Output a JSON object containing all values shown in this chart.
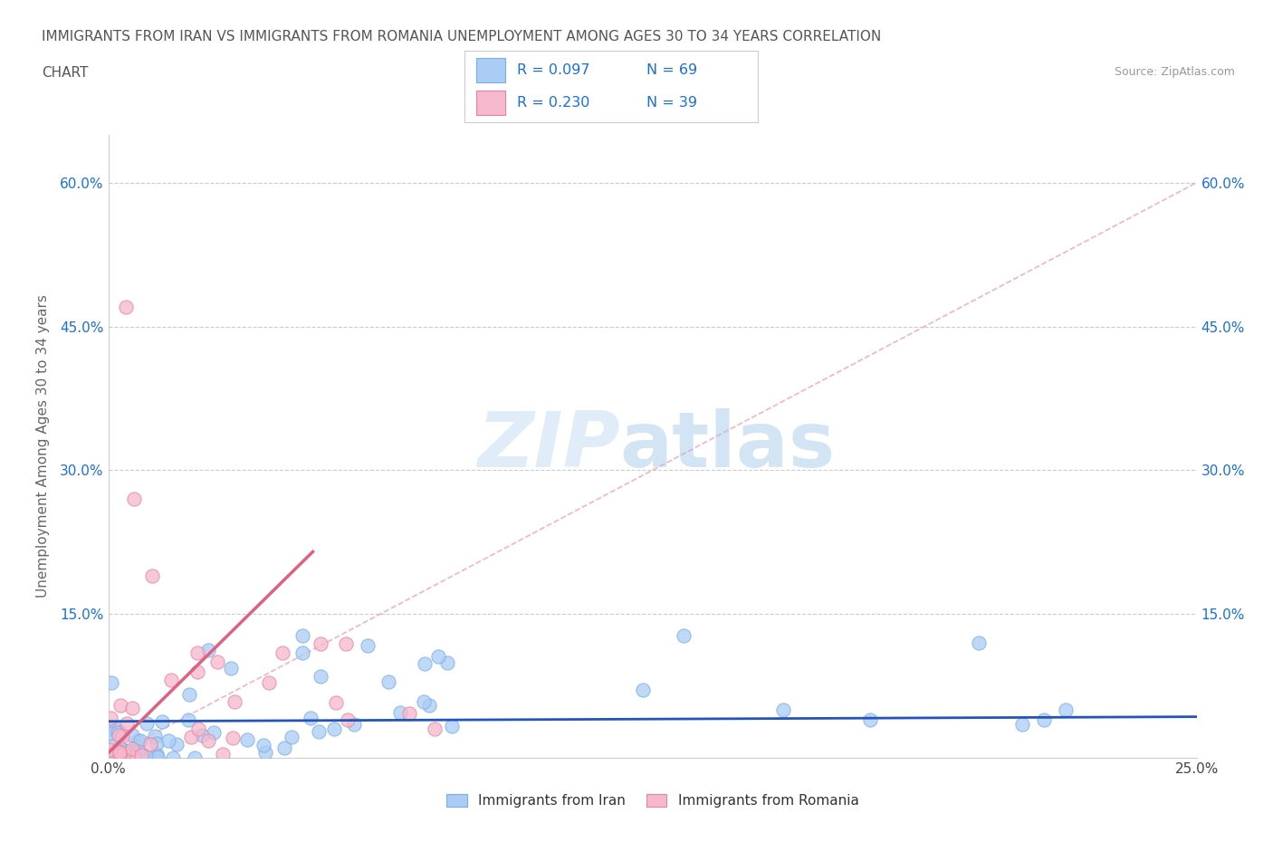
{
  "title_line1": "IMMIGRANTS FROM IRAN VS IMMIGRANTS FROM ROMANIA UNEMPLOYMENT AMONG AGES 30 TO 34 YEARS CORRELATION",
  "title_line2": "CHART",
  "source": "Source: ZipAtlas.com",
  "ylabel": "Unemployment Among Ages 30 to 34 years",
  "xlim": [
    0.0,
    0.25
  ],
  "ylim": [
    0.0,
    0.65
  ],
  "iran_color": "#aaccf5",
  "iran_edge": "#7aaee8",
  "romania_color": "#f5b8cc",
  "romania_edge": "#e8829e",
  "iran_R": 0.097,
  "iran_N": 69,
  "romania_R": 0.23,
  "romania_N": 39,
  "legend_color": "#1a6fdb",
  "background_color": "#ffffff",
  "watermark_zip": "ZIP",
  "watermark_atlas": "atlas",
  "iran_line_color": "#2255bb",
  "romania_line_color": "#e06080",
  "romania_dash_color": "#f0a0b8",
  "ytick_color": "#1a6fdb",
  "title_color": "#555555",
  "source_color": "#999999"
}
